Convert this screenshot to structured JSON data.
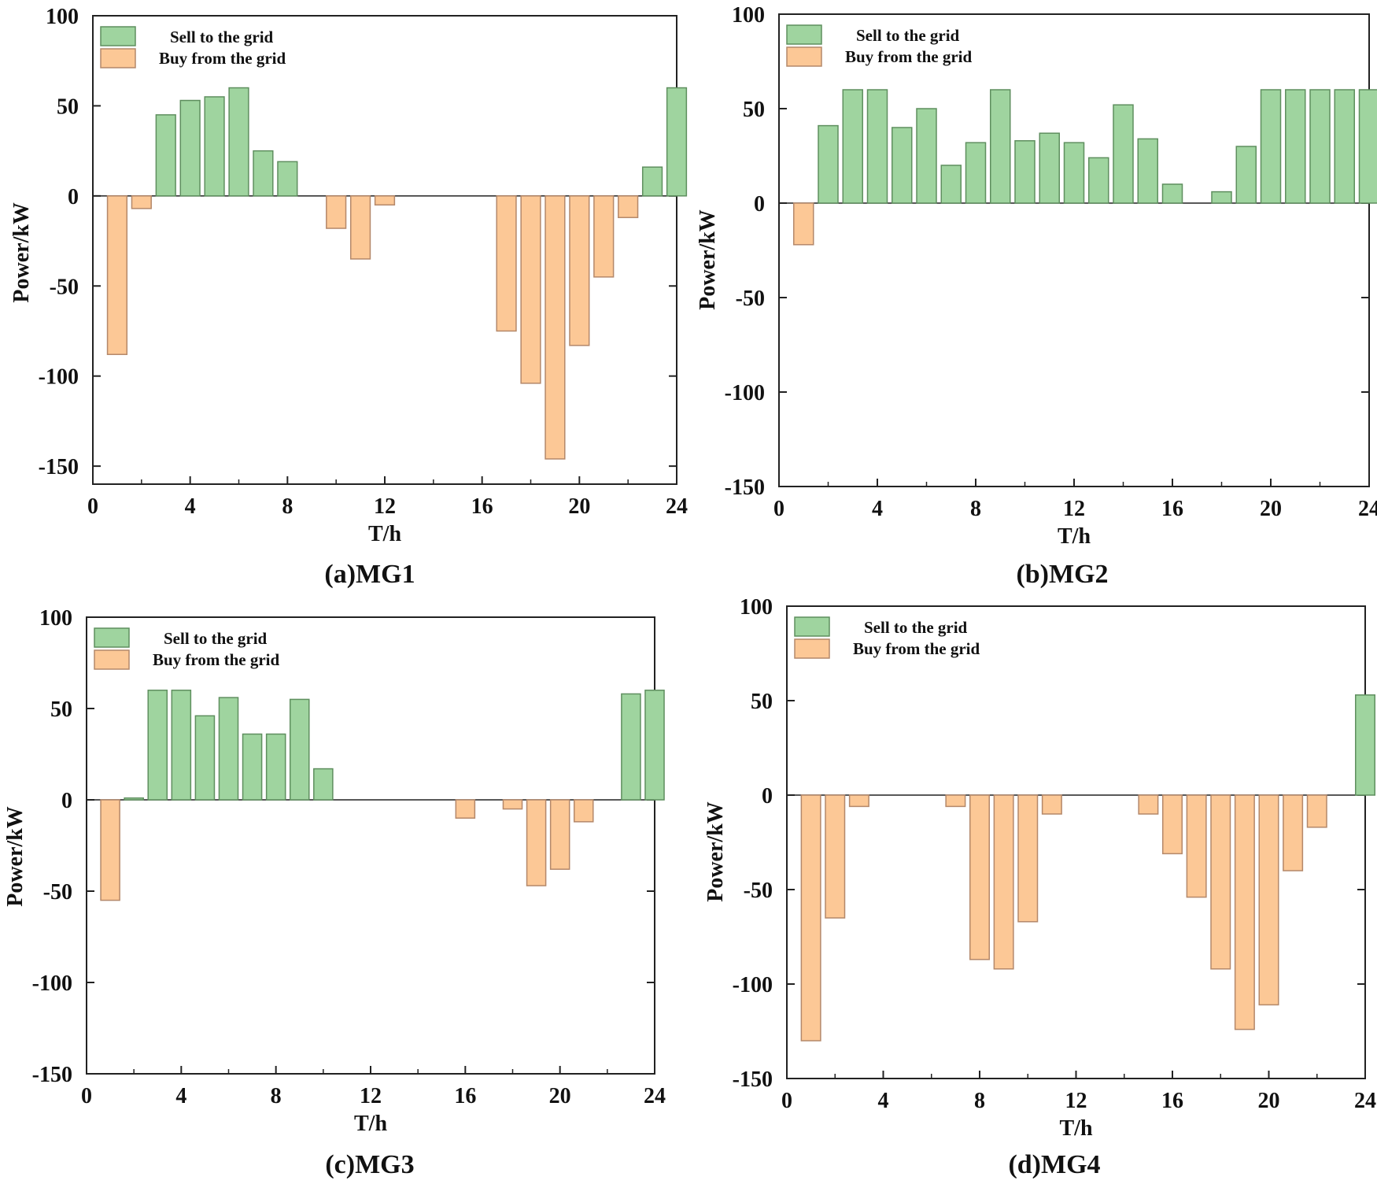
{
  "colors": {
    "sell": "#9fd49f",
    "sell_stroke": "#5f8f5f",
    "buy": "#fcc896",
    "buy_stroke": "#b4886a",
    "axis": "#222222"
  },
  "chart_data": [
    {
      "type": "bar",
      "caption": "(a)MG1",
      "xlabel": "T/h",
      "ylabel": "Power/kW",
      "xlim": [
        0,
        24
      ],
      "ylim": [
        -160,
        100
      ],
      "xticks": [
        "0",
        "4",
        "8",
        "12",
        "16",
        "20",
        "24"
      ],
      "yticks": [
        "100",
        "50",
        "0",
        "-50",
        "-100",
        "-150"
      ],
      "legend": [
        "Sell to the grid",
        "Buy from the grid"
      ],
      "legend_position": "top-left",
      "series": [
        {
          "name": "Sell to the grid",
          "x": [
            3,
            4,
            5,
            6,
            7,
            8,
            23,
            24
          ],
          "values": [
            45,
            53,
            55,
            60,
            25,
            19,
            16,
            60
          ]
        },
        {
          "name": "Buy from the grid",
          "x": [
            1,
            2,
            10,
            11,
            12,
            17,
            18,
            19,
            20,
            21,
            22
          ],
          "values": [
            -88,
            -7,
            -18,
            -35,
            -5,
            -75,
            -104,
            -146,
            -83,
            -45,
            -12
          ]
        }
      ]
    },
    {
      "type": "bar",
      "caption": "(b)MG2",
      "xlabel": "T/h",
      "ylabel": "Power/kW",
      "xlim": [
        0,
        24
      ],
      "ylim": [
        -150,
        100
      ],
      "xticks": [
        "0",
        "4",
        "8",
        "12",
        "16",
        "20",
        "24"
      ],
      "yticks": [
        "100",
        "50",
        "0",
        "-50",
        "-100",
        "-150"
      ],
      "legend": [
        "Sell to the grid",
        "Buy from the grid"
      ],
      "legend_position": "top-left",
      "series": [
        {
          "name": "Sell to the grid",
          "x": [
            2,
            3,
            4,
            5,
            6,
            7,
            8,
            9,
            10,
            11,
            12,
            13,
            14,
            15,
            16,
            18,
            19,
            20,
            21,
            22,
            23,
            24
          ],
          "values": [
            41,
            60,
            60,
            40,
            50,
            20,
            32,
            60,
            33,
            37,
            32,
            24,
            52,
            34,
            10,
            6,
            30,
            60,
            60,
            60,
            60,
            60
          ]
        },
        {
          "name": "Buy from the grid",
          "x": [
            1
          ],
          "values": [
            -22
          ]
        }
      ]
    },
    {
      "type": "bar",
      "caption": "(c)MG3",
      "xlabel": "T/h",
      "ylabel": "Power/kW",
      "xlim": [
        0,
        24
      ],
      "ylim": [
        -150,
        100
      ],
      "xticks": [
        "0",
        "4",
        "8",
        "12",
        "16",
        "20",
        "24"
      ],
      "yticks": [
        "100",
        "50",
        "0",
        "-50",
        "-100",
        "-150"
      ],
      "legend": [
        "Sell to the grid",
        "Buy from the grid"
      ],
      "legend_position": "top-left",
      "series": [
        {
          "name": "Sell to the grid",
          "x": [
            2,
            3,
            4,
            5,
            6,
            7,
            8,
            9,
            10,
            23,
            24
          ],
          "values": [
            1,
            60,
            60,
            46,
            56,
            36,
            36,
            55,
            17,
            58,
            60
          ]
        },
        {
          "name": "Buy from the grid",
          "x": [
            1,
            16,
            18,
            19,
            20,
            21
          ],
          "values": [
            -55,
            -10,
            -5,
            -47,
            -38,
            -12
          ]
        }
      ]
    },
    {
      "type": "bar",
      "caption": "(d)MG4",
      "xlabel": "T/h",
      "ylabel": "Power/kW",
      "xlim": [
        0,
        24
      ],
      "ylim": [
        -150,
        100
      ],
      "xticks": [
        "0",
        "4",
        "8",
        "12",
        "16",
        "20",
        "24"
      ],
      "yticks": [
        "100",
        "50",
        "0",
        "-50",
        "-100",
        "-150"
      ],
      "legend": [
        "Sell to the grid",
        "Buy from the grid"
      ],
      "legend_position": "top-left",
      "series": [
        {
          "name": "Sell to the grid",
          "x": [
            24
          ],
          "values": [
            53
          ]
        },
        {
          "name": "Buy from the grid",
          "x": [
            1,
            2,
            3,
            7,
            8,
            9,
            10,
            11,
            15,
            16,
            17,
            18,
            19,
            20,
            21,
            22
          ],
          "values": [
            -130,
            -65,
            -6,
            -6,
            -87,
            -92,
            -67,
            -10,
            -10,
            -31,
            -54,
            -92,
            -124,
            -111,
            -40,
            -17
          ]
        }
      ]
    }
  ]
}
